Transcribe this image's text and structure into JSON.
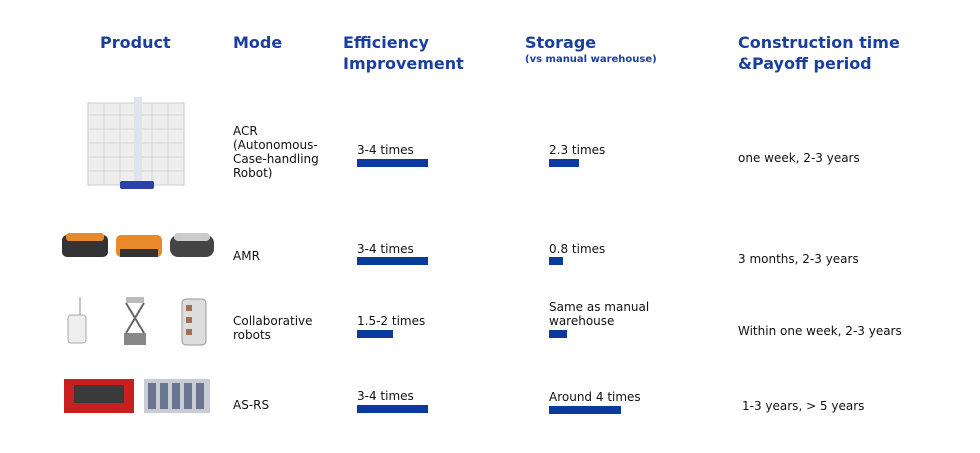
{
  "header": {
    "columns": [
      "Product",
      "Mode",
      "Efficiency Improvement",
      "Storage",
      "Construction time &Payoff period"
    ],
    "storage_note": "(vs manual warehouse)"
  },
  "rows": [
    {
      "mode": "ACR (Autonomous-Case-handling Robot)",
      "efficiency": "3-4 times",
      "storage": "2.3 times",
      "construction": "one week, 2-3 years"
    },
    {
      "mode": "AMR",
      "efficiency": "3-4 times",
      "storage": "0.8 times",
      "construction": "3 months, 2-3 years"
    },
    {
      "mode": "Collaborative robots",
      "efficiency": "1.5-2 times",
      "storage": "Same as manual warehouse",
      "construction": "Within one week, 2-3 years"
    },
    {
      "mode": "AS-RS",
      "efficiency": "3-4 times",
      "storage": "Around 4 times",
      "construction": "1-3 years, > 5 years"
    }
  ]
}
